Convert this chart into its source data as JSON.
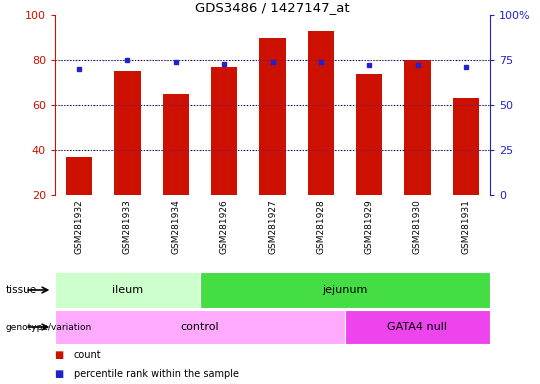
{
  "title": "GDS3486 / 1427147_at",
  "samples": [
    "GSM281932",
    "GSM281933",
    "GSM281934",
    "GSM281926",
    "GSM281927",
    "GSM281928",
    "GSM281929",
    "GSM281930",
    "GSM281931"
  ],
  "counts": [
    37,
    75,
    65,
    77,
    90,
    93,
    74,
    80,
    63
  ],
  "percentile_ranks": [
    70,
    75,
    74,
    73,
    74,
    74,
    72,
    72,
    71
  ],
  "ylim_left": [
    20,
    100
  ],
  "ylim_right": [
    0,
    100
  ],
  "yticks_left": [
    20,
    40,
    60,
    80,
    100
  ],
  "yticks_right": [
    0,
    25,
    50,
    75,
    100
  ],
  "yticklabels_right": [
    "0",
    "25",
    "50",
    "75",
    "100%"
  ],
  "tissue_groups": [
    {
      "label": "ileum",
      "start": 0,
      "end": 3,
      "color": "#ccffcc"
    },
    {
      "label": "jejunum",
      "start": 3,
      "end": 9,
      "color": "#44dd44"
    }
  ],
  "genotype_groups": [
    {
      "label": "control",
      "start": 0,
      "end": 6,
      "color": "#ffaaff"
    },
    {
      "label": "GATA4 null",
      "start": 6,
      "end": 9,
      "color": "#ee44ee"
    }
  ],
  "bar_color": "#cc1100",
  "dot_color": "#2222cc",
  "background_color": "#ffffff",
  "tick_color_left": "#cc1100",
  "tick_color_right": "#2222cc",
  "label_bg": "#d8d8d8",
  "figsize": [
    5.4,
    3.84
  ],
  "dpi": 100
}
